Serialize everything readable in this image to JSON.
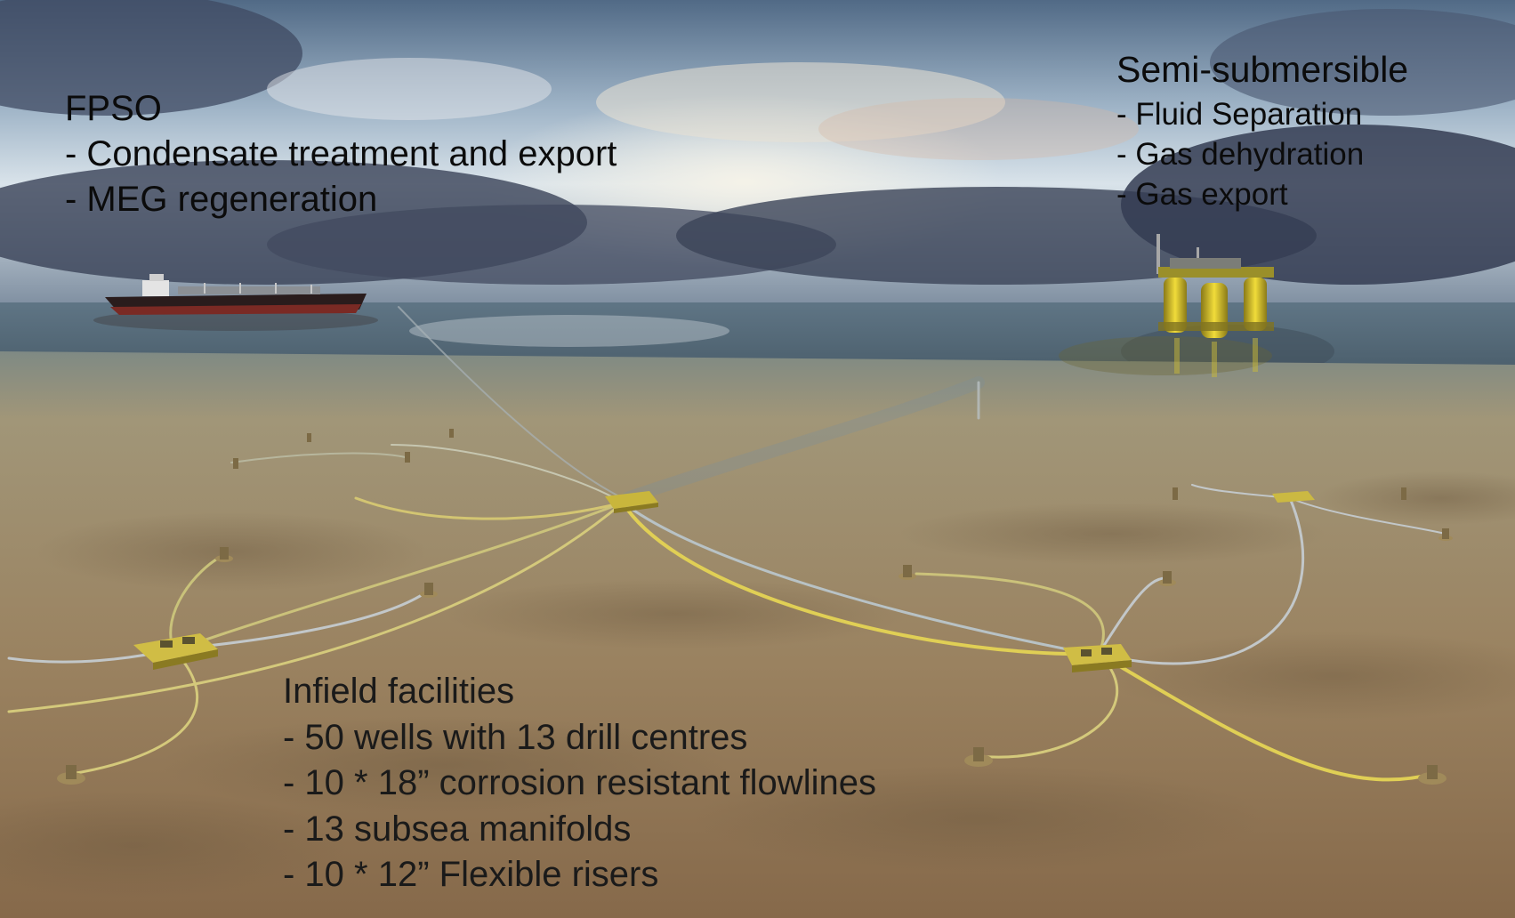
{
  "scene": {
    "colors": {
      "sky_top": "#5d7591",
      "sky_mid": "#c9d8e4",
      "cloud_dark": "#3a4258",
      "sea": "#6d7f8c",
      "seabed_far": "#9a9174",
      "seabed_near": "#8b6e48",
      "flowline": "#c9c27a",
      "structure": "#d8c24a",
      "hull_dark": "#2a1c1c",
      "hull_red": "#7a2a24"
    }
  },
  "labels": {
    "fpso": {
      "title": "FPSO",
      "items": [
        "- Condensate treatment and export",
        "- MEG regeneration"
      ]
    },
    "semi_submersible": {
      "title": "Semi-submersible",
      "items": [
        "- Fluid Separation",
        "- Gas dehydration",
        "- Gas export"
      ]
    },
    "infield": {
      "title": "Infield facilities",
      "items": [
        "- 50 wells with 13 drill centres",
        "- 10 * 18” corrosion resistant flowlines",
        "- 13 subsea manifolds",
        "- 10 * 12” Flexible risers"
      ]
    }
  }
}
